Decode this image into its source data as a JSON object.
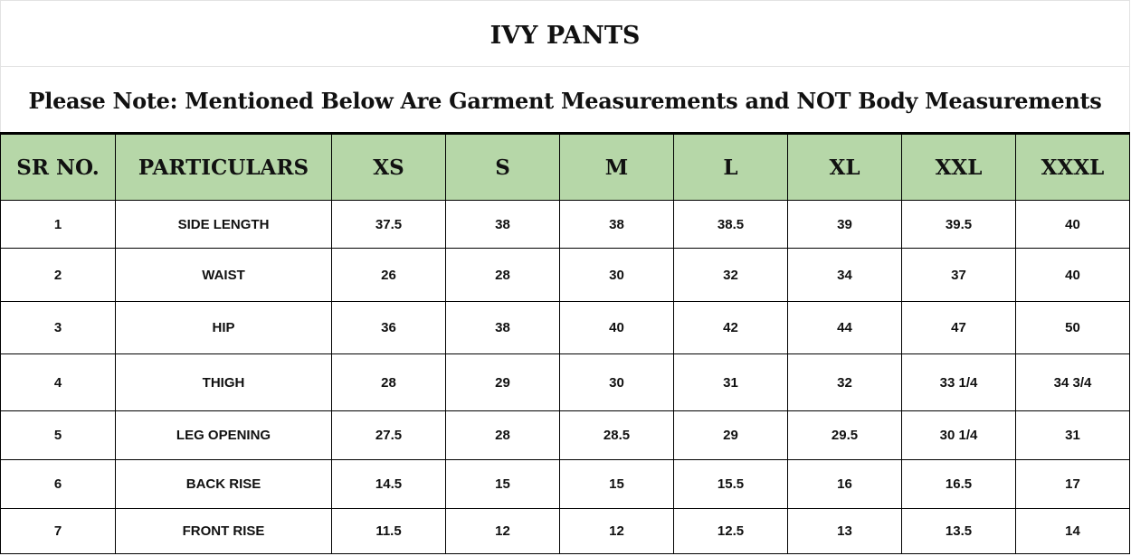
{
  "title": "IVY PANTS",
  "note": "Please Note: Mentioned Below Are Garment Measurements and NOT Body Measurements",
  "header_color": "#b6d7a8",
  "columns": [
    "SR NO.",
    "PARTICULARS",
    "XS",
    "S",
    "M",
    "L",
    "XL",
    "XXL",
    "XXXL"
  ],
  "rows": [
    [
      "1",
      "SIDE LENGTH",
      "37.5",
      "38",
      "38",
      "38.5",
      "39",
      "39.5",
      "40"
    ],
    [
      "2",
      "WAIST",
      "26",
      "28",
      "30",
      "32",
      "34",
      "37",
      "40"
    ],
    [
      "3",
      "HIP",
      "36",
      "38",
      "40",
      "42",
      "44",
      "47",
      "50"
    ],
    [
      "4",
      "THIGH",
      "28",
      "29",
      "30",
      "31",
      "32",
      "33 1/4",
      "34 3/4"
    ],
    [
      "5",
      "LEG OPENING",
      "27.5",
      "28",
      "28.5",
      "29",
      "29.5",
      "30 1/4",
      "31"
    ],
    [
      "6",
      "BACK RISE",
      "14.5",
      "15",
      "15",
      "15.5",
      "16",
      "16.5",
      "17"
    ],
    [
      "7",
      "FRONT RISE",
      "11.5",
      "12",
      "12",
      "12.5",
      "13",
      "13.5",
      "14"
    ]
  ]
}
